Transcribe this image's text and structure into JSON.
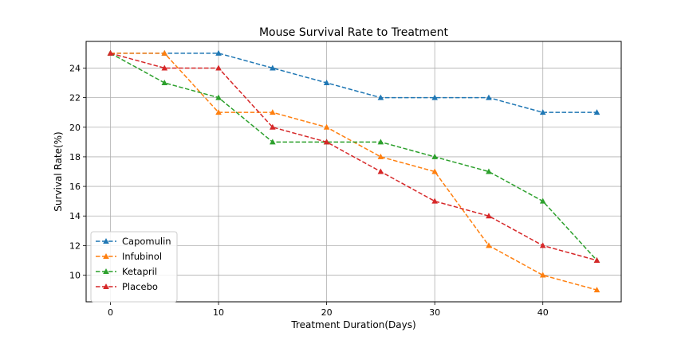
{
  "chart_data": {
    "type": "line",
    "title": "Mouse Survival Rate to Treatment",
    "xlabel": "Treatment Duration(Days)",
    "ylabel": "Survival Rate(%)",
    "x": [
      0,
      5,
      10,
      15,
      20,
      25,
      30,
      35,
      40,
      45
    ],
    "xlim": [
      -2.25,
      47.25
    ],
    "ylim": [
      8.2,
      25.8
    ],
    "xticks": [
      0,
      10,
      20,
      30,
      40
    ],
    "yticks": [
      10,
      12,
      14,
      16,
      18,
      20,
      22,
      24
    ],
    "grid": true,
    "legend_position": "lower-left",
    "line_style": "dashed",
    "marker": "triangle-up",
    "series": [
      {
        "name": "Capomulin",
        "color": "#1f77b4",
        "values": [
          25,
          25,
          25,
          24,
          23,
          22,
          22,
          22,
          21,
          21
        ]
      },
      {
        "name": "Infubinol",
        "color": "#ff7f0e",
        "values": [
          25,
          25,
          21,
          21,
          20,
          18,
          17,
          12,
          10,
          9
        ]
      },
      {
        "name": "Ketapril",
        "color": "#2ca02c",
        "values": [
          25,
          23,
          22,
          19,
          19,
          19,
          18,
          17,
          15,
          11
        ]
      },
      {
        "name": "Placebo",
        "color": "#d62728",
        "values": [
          25,
          24,
          24,
          20,
          19,
          17,
          15,
          14,
          12,
          11
        ]
      }
    ]
  }
}
